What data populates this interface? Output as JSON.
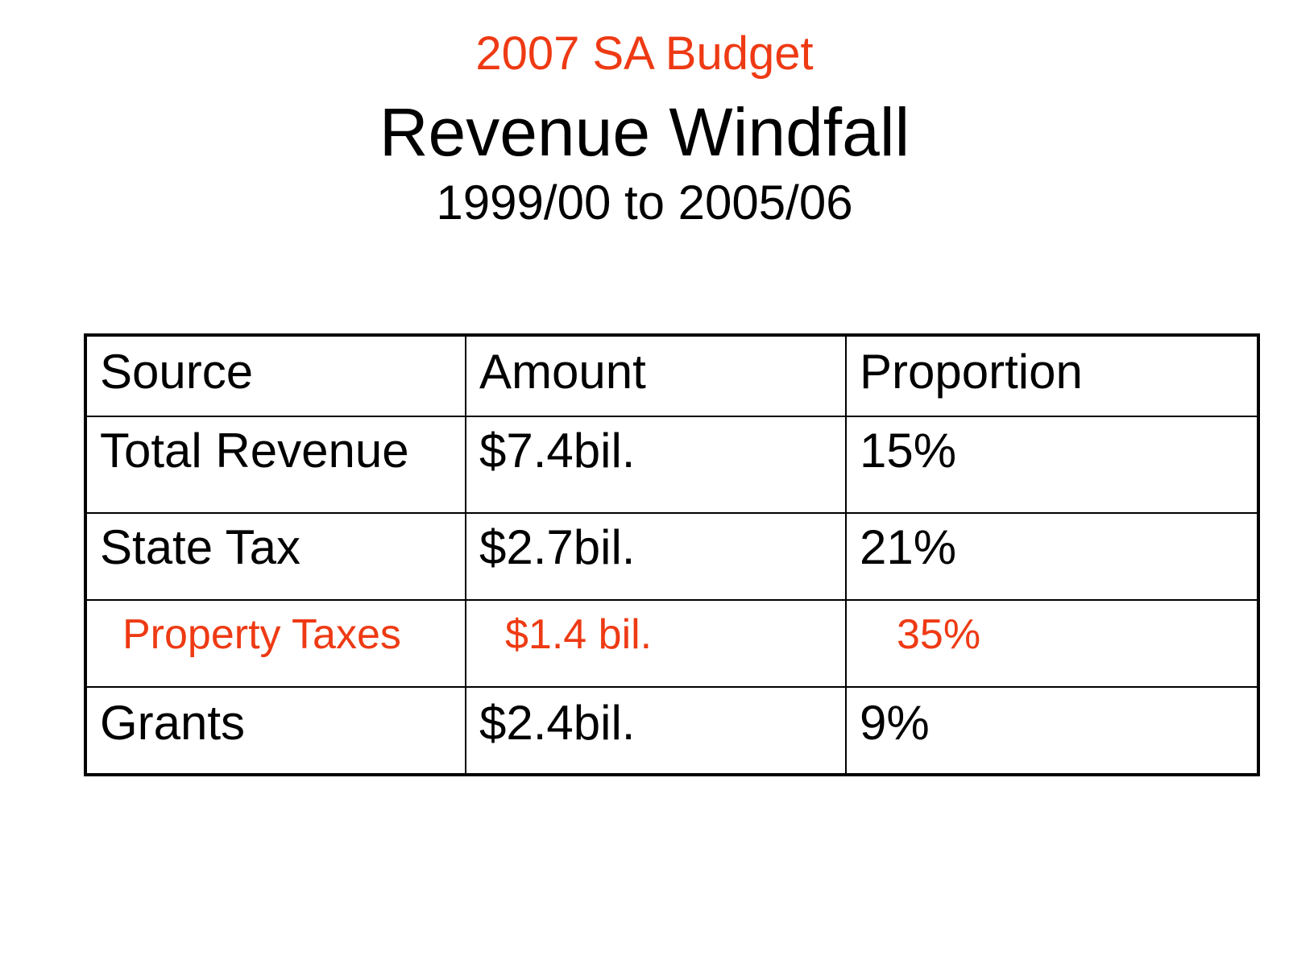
{
  "slide": {
    "pre_title": "2007 SA Budget",
    "title": "Revenue Windfall",
    "subtitle": "1999/00 to 2005/06"
  },
  "colors": {
    "accent": "#ee3a14",
    "text": "#000000",
    "background": "#ffffff"
  },
  "table": {
    "headers": [
      "Source",
      "Amount",
      "Proportion"
    ],
    "rows": [
      {
        "source": "Total Revenue",
        "amount": "$7.4bil.",
        "proportion": "15%",
        "highlight": false
      },
      {
        "source": "State Tax",
        "amount": "$2.7bil.",
        "proportion": "21%",
        "highlight": false
      },
      {
        "source": "Property Taxes",
        "amount": "$1.4 bil.",
        "proportion": "35%",
        "highlight": true
      },
      {
        "source": "Grants",
        "amount": "$2.4bil.",
        "proportion": "9%",
        "highlight": false
      }
    ]
  }
}
